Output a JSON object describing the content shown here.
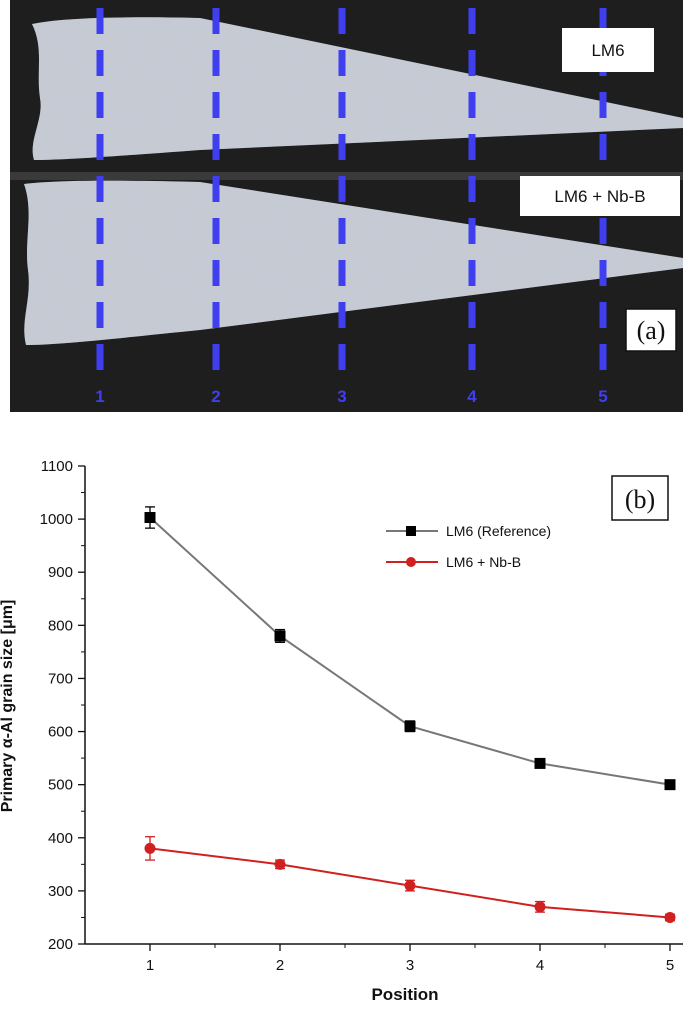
{
  "panel_a": {
    "label": "(a)",
    "sample_top_label": "LM6",
    "sample_bottom_label": "LM6 + Nb-B",
    "position_numbers": [
      "1",
      "2",
      "3",
      "4",
      "5"
    ],
    "colors": {
      "background": "#202020",
      "sample": "#c9ced6",
      "dashes": "#3f3ff0"
    }
  },
  "chart_data": {
    "type": "line",
    "panel_label": "(b)",
    "xlabel": "Position",
    "ylabel": "Primary α-Al grain size [μm]",
    "x": [
      1,
      2,
      3,
      4,
      5
    ],
    "xlim": [
      0.5,
      5.1
    ],
    "ylim": [
      200,
      1100
    ],
    "x_ticks": [
      "1",
      "2",
      "3",
      "4",
      "5"
    ],
    "y_ticks": [
      "200",
      "300",
      "400",
      "500",
      "600",
      "700",
      "800",
      "900",
      "1000",
      "1100"
    ],
    "grid": false,
    "legend_position": "top-right",
    "series": [
      {
        "name": "LM6 (Reference)",
        "marker": "square",
        "color": "#000000",
        "line_color": "#777777",
        "values": [
          1003,
          780,
          610,
          540,
          500
        ],
        "errors": [
          20,
          12,
          10,
          8,
          6
        ]
      },
      {
        "name": "LM6 + Nb-B",
        "marker": "circle",
        "color": "#d02020",
        "line_color": "#d02020",
        "values": [
          380,
          350,
          310,
          270,
          250
        ],
        "errors": [
          22,
          8,
          10,
          10,
          6
        ]
      }
    ]
  }
}
